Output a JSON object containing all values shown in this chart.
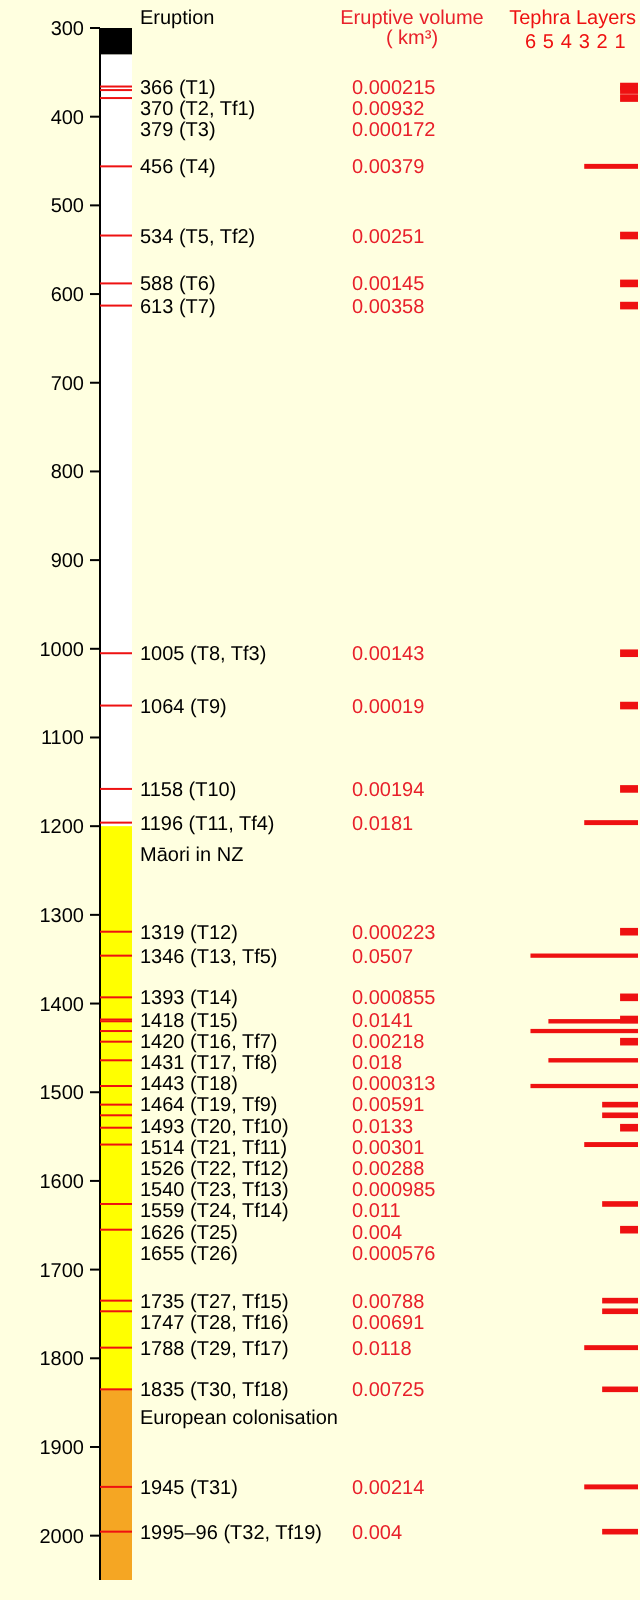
{
  "chart_data": {
    "type": "bar",
    "orientation": "horizontal",
    "xlabel": "Tephra Layers",
    "x": [
      366,
      370,
      379,
      456,
      534,
      588,
      613,
      1005,
      1064,
      1158,
      1196,
      1319,
      1346,
      1393,
      1418,
      1420,
      1431,
      1443,
      1464,
      1493,
      1514,
      1526,
      1540,
      1559,
      1626,
      1655,
      1735,
      1747,
      1788,
      1835,
      1945,
      1995.5
    ],
    "series": [
      {
        "color": "#ee1111",
        "values": [
          1,
          1,
          1,
          3,
          1,
          1,
          1,
          1,
          1,
          1,
          3,
          1,
          6,
          1,
          1,
          5,
          6,
          1,
          5,
          6,
          2,
          2,
          1,
          3,
          2,
          1,
          2,
          2,
          3,
          2,
          3,
          2
        ]
      }
    ],
    "xlim": [
      35.6,
      0
    ],
    "xticks": [
      6,
      5,
      4,
      3,
      2,
      1
    ],
    "ylim": [
      2050,
      300
    ],
    "yticks": [
      300,
      400,
      500,
      600,
      700,
      800,
      900,
      1000,
      1100,
      1200,
      1300,
      1400,
      1500,
      1600,
      1700,
      1800,
      1900,
      2000
    ],
    "bands": [
      {
        "axis": "y",
        "from": 300,
        "to": 330,
        "color": "#000000"
      },
      {
        "axis": "y",
        "from": 330,
        "to": 1200,
        "color": "#ffffff"
      },
      {
        "axis": "y",
        "from": 1200,
        "to": 1835,
        "label": "Māori in NZ",
        "color": "#ffff00"
      },
      {
        "axis": "y",
        "from": 1835,
        "to": 2050,
        "label": "European colonisation",
        "color": "#f5a623"
      }
    ],
    "annotations": [
      "Eruption",
      "Eruptive volume ( km³)",
      "366 (T1)",
      "370 (T2, Tf1)",
      "379 (T3)",
      "456 (T4)",
      "534 (T5, Tf2)",
      "588 (T6)",
      "613 (T7)",
      "1005 (T8, Tf3)",
      "1064 (T9)",
      "1158 (T10)",
      "1196 (T11, Tf4)",
      "1319 (T12)",
      "1346 (T13, Tf5)",
      "1393 (T14)",
      "1418 (T15)",
      "1420 (T16, Tf7)",
      "1431 (T17, Tf8)",
      "1443 (T18)",
      "1464 (T19, Tf9)",
      "1493 (T20, Tf10)",
      "1514 (T21, Tf11)",
      "1526 (T22, Tf12)",
      "1540 (T23, Tf13)",
      "1559 (T24, Tf14)",
      "1626 (T25)",
      "1655 (T26)",
      "1735 (T27, Tf15)",
      "1747 (T28, Tf16)",
      "1788 (T29, Tf17)",
      "1835 (T30, Tf18)",
      "1945 (T31)",
      "1995–96 (T32, Tf19)",
      "0.000215",
      "0.00932",
      "0.000172",
      "0.00379",
      "0.00251",
      "0.00145",
      "0.00358",
      "0.00143",
      "0.00019",
      "0.00194",
      "0.0181",
      "0.000223",
      "0.0507",
      "0.000855",
      "0.0141",
      "0.00218",
      "0.018",
      "0.000313",
      "0.00591",
      "0.0133",
      "0.00301",
      "0.00288",
      "0.000985",
      "0.011",
      "0.004",
      "0.000576",
      "0.00788",
      "0.00691",
      "0.0118",
      "0.00725",
      "0.00214",
      "0.004"
    ]
  }
}
